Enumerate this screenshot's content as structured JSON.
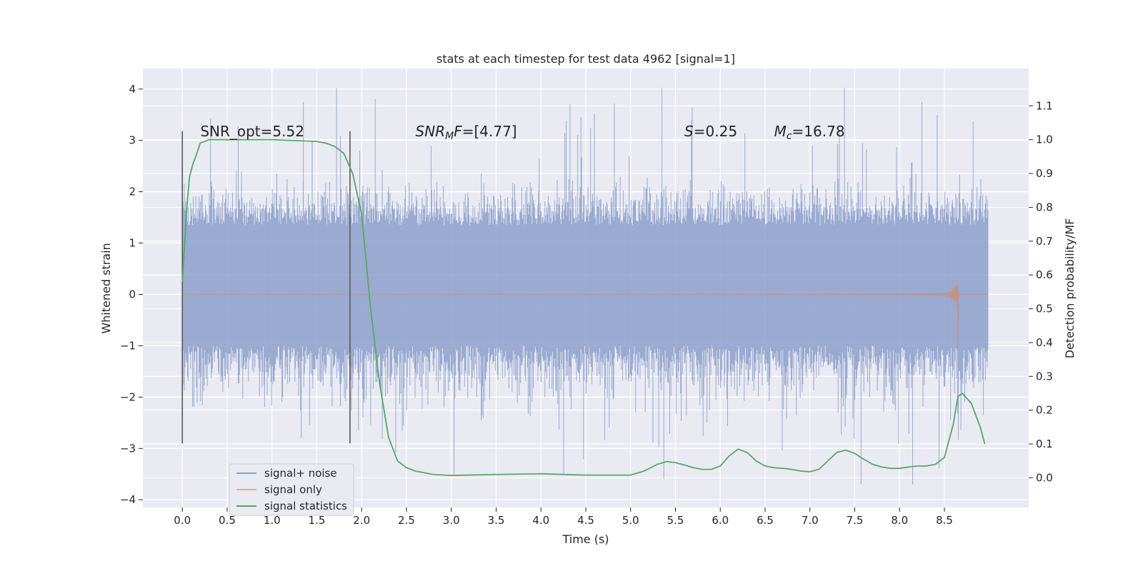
{
  "chart_data": {
    "type": "line",
    "title": "stats at each timestep for test data 4962 [signal=1]",
    "xlabel": "Time (s)",
    "ylabel": "Whitened strain",
    "y2label": "Detection probability/MF",
    "xlim": [
      -0.44,
      9.44
    ],
    "ylim": [
      -4.15,
      4.4
    ],
    "y2lim": [
      -0.0877,
      1.2105
    ],
    "x_ticks": [
      "0.0",
      "0.5",
      "1.0",
      "1.5",
      "2.0",
      "2.5",
      "3.0",
      "3.5",
      "4.0",
      "4.5",
      "5.0",
      "5.5",
      "6.0",
      "6.5",
      "7.0",
      "7.5",
      "8.0",
      "8.5"
    ],
    "x_tick_values": [
      0,
      0.5,
      1,
      1.5,
      2,
      2.5,
      3,
      3.5,
      4,
      4.5,
      5,
      5.5,
      6,
      6.5,
      7,
      7.5,
      8,
      8.5
    ],
    "y_ticks": [
      "4",
      "3",
      "2",
      "1",
      "0",
      "−1",
      "−2",
      "−3",
      "−4"
    ],
    "y_tick_values": [
      4,
      3,
      2,
      1,
      0,
      -1,
      -2,
      -3,
      -4
    ],
    "y2_ticks": [
      "1.1",
      "1.0",
      "0.9",
      "0.8",
      "0.7",
      "0.6",
      "0.5",
      "0.4",
      "0.3",
      "0.2",
      "0.1",
      "0.0"
    ],
    "y2_tick_values": [
      1.1,
      1.0,
      0.9,
      0.8,
      0.7,
      0.6,
      0.5,
      0.4,
      0.3,
      0.2,
      0.1,
      0.0
    ],
    "grid": true,
    "legend_position": "lower-left",
    "series": [
      {
        "name": "signal+ noise",
        "color": "#8c9fcb",
        "axis": "left",
        "kind": "noise-band",
        "x_range": [
          0,
          8.99
        ],
        "core_envelope": [
          -1.0,
          1.35
        ],
        "typical_extremes": [
          -2.3,
          2.3
        ],
        "peak_max": 4.02,
        "peak_min": -3.7
      },
      {
        "name": "signal only",
        "color": "#dd8452",
        "axis": "left",
        "kind": "chirp",
        "x_range": [
          0,
          8.99
        ],
        "merger_time": 8.65,
        "peak_amplitude": 0.93,
        "peak_min": -1.05
      },
      {
        "name": "signal statistics",
        "color": "#55a868",
        "axis": "right",
        "x": [
          0.0,
          0.05,
          0.08,
          0.12,
          0.15,
          0.2,
          0.3,
          0.5,
          1.0,
          1.5,
          1.6,
          1.7,
          1.8,
          1.9,
          2.0,
          2.1,
          2.2,
          2.3,
          2.4,
          2.5,
          2.6,
          2.8,
          3.0,
          3.5,
          4.0,
          4.5,
          5.0,
          5.15,
          5.3,
          5.4,
          5.5,
          5.6,
          5.7,
          5.8,
          5.9,
          6.0,
          6.1,
          6.2,
          6.3,
          6.4,
          6.5,
          6.6,
          6.7,
          6.8,
          6.9,
          7.0,
          7.1,
          7.2,
          7.3,
          7.4,
          7.5,
          7.6,
          7.7,
          7.8,
          7.9,
          8.0,
          8.1,
          8.2,
          8.3,
          8.4,
          8.5,
          8.6,
          8.65,
          8.7,
          8.8,
          8.9,
          8.95
        ],
        "values": [
          0.58,
          0.8,
          0.89,
          0.93,
          0.95,
          0.99,
          1.0,
          1.0,
          1.0,
          0.995,
          0.99,
          0.98,
          0.96,
          0.9,
          0.78,
          0.5,
          0.28,
          0.12,
          0.05,
          0.03,
          0.02,
          0.01,
          0.007,
          0.01,
          0.012,
          0.008,
          0.008,
          0.02,
          0.04,
          0.048,
          0.045,
          0.038,
          0.03,
          0.025,
          0.025,
          0.035,
          0.065,
          0.085,
          0.075,
          0.05,
          0.035,
          0.03,
          0.028,
          0.025,
          0.02,
          0.018,
          0.025,
          0.05,
          0.075,
          0.082,
          0.072,
          0.055,
          0.04,
          0.032,
          0.028,
          0.028,
          0.032,
          0.035,
          0.035,
          0.04,
          0.06,
          0.16,
          0.24,
          0.25,
          0.22,
          0.15,
          0.1
        ]
      }
    ],
    "vertical_lines": [
      {
        "x": 0.0,
        "y_range": [
          -2.9,
          3.18
        ],
        "color": "#595959"
      },
      {
        "x": 1.87,
        "y_range": [
          -2.9,
          3.18
        ],
        "color": "#595959"
      }
    ],
    "annotations": [
      {
        "x": 0.2,
        "y": 3.18,
        "text": "SNR_opt=5.52",
        "math": false
      },
      {
        "x": 2.6,
        "y": 3.18,
        "text": "SNR",
        "sub": "M",
        "suffix_italic": "F",
        "suffix": "=[4.77]",
        "math": true
      },
      {
        "x": 5.6,
        "y": 3.18,
        "text": "S",
        "suffix": "=0.25",
        "math": true
      },
      {
        "x": 6.6,
        "y": 3.18,
        "text": "M",
        "sub": "c",
        "suffix": "=16.78",
        "math": true
      }
    ]
  }
}
